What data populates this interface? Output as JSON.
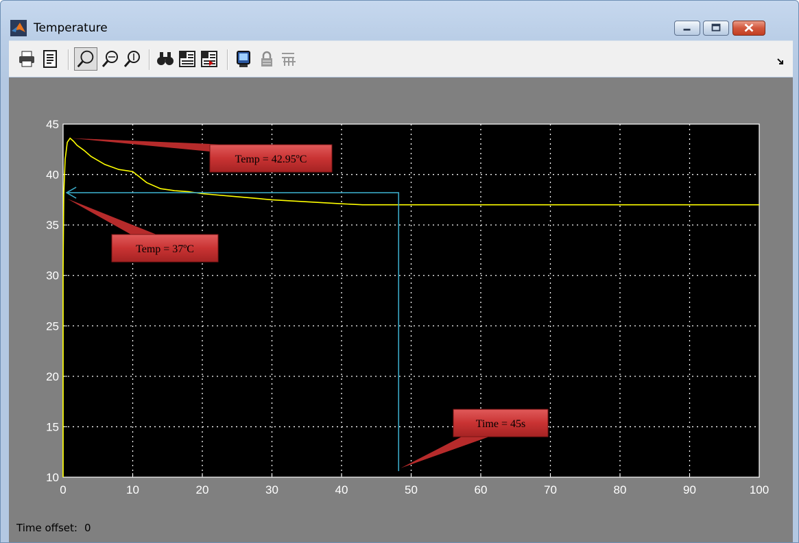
{
  "window": {
    "title": "Temperature",
    "accent": "#b9cde6"
  },
  "toolbar": {
    "buttons": [
      {
        "name": "print-icon"
      },
      {
        "name": "parameters-icon"
      },
      {
        "name": "zoom-icon",
        "pressed": true
      },
      {
        "name": "zoom-x-icon"
      },
      {
        "name": "zoom-y-icon"
      },
      {
        "name": "autoscale-icon"
      },
      {
        "name": "save-axes-icon"
      },
      {
        "name": "restore-axes-icon"
      },
      {
        "name": "floating-scope-icon"
      },
      {
        "name": "lock-axes-icon"
      },
      {
        "name": "signal-selection-icon"
      }
    ]
  },
  "status": {
    "label": "Time offset:",
    "value": "0"
  },
  "chart_data": {
    "type": "line",
    "title": "",
    "xlabel": "",
    "ylabel": "",
    "xlim": [
      0,
      100
    ],
    "ylim": [
      10,
      45
    ],
    "xticks": [
      "0",
      "10",
      "20",
      "30",
      "40",
      "50",
      "60",
      "70",
      "80",
      "90",
      "100"
    ],
    "yticks": [
      "10",
      "15",
      "20",
      "25",
      "30",
      "35",
      "40",
      "45"
    ],
    "grid": true,
    "background": "#000000",
    "series": [
      {
        "color": "#ffff00",
        "x": [
          0,
          0,
          0.1,
          0.3,
          0.6,
          1,
          1.5,
          2,
          3,
          4,
          6,
          8,
          10,
          12,
          14,
          16,
          18,
          20,
          25,
          30,
          35,
          40,
          43,
          45,
          50,
          100
        ],
        "y": [
          10,
          30.5,
          38,
          41.5,
          43.2,
          43.6,
          43.3,
          42.9,
          42.4,
          41.8,
          41,
          40.5,
          40.3,
          39.2,
          38.6,
          38.4,
          38.3,
          38.1,
          37.8,
          37.5,
          37.3,
          37.1,
          37,
          37,
          37,
          37
        ]
      }
    ],
    "annotations": [
      {
        "text": "Temp = 42.95ºC"
      },
      {
        "text": "Temp = 37ºC"
      },
      {
        "text": "Time = 45s"
      }
    ],
    "marker_line": {
      "color": "#3aa8c4",
      "x": 48.2,
      "y": 38.2,
      "y_bottom": 10.6
    }
  }
}
